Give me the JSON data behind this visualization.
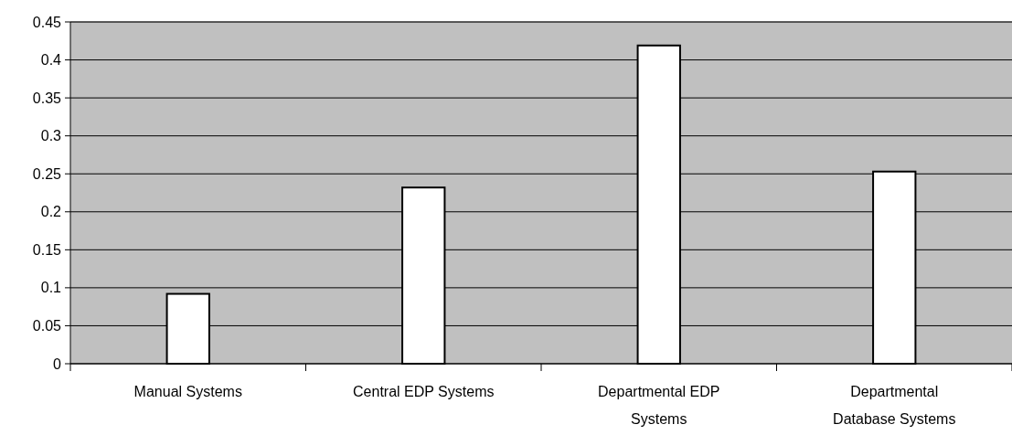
{
  "chart_data": {
    "type": "bar",
    "categories": [
      "Manual Systems",
      "Central EDP Systems",
      "Departmental EDP Systems",
      "Departmental Database Systems"
    ],
    "values": [
      0.092,
      0.232,
      0.419,
      0.253
    ],
    "color": "#ffffff",
    "ylim": [
      0,
      0.45
    ],
    "yticks": [
      0,
      0.05,
      0.1,
      0.15,
      0.2,
      0.25,
      0.3,
      0.35,
      0.4,
      0.45
    ],
    "grid": "y"
  }
}
